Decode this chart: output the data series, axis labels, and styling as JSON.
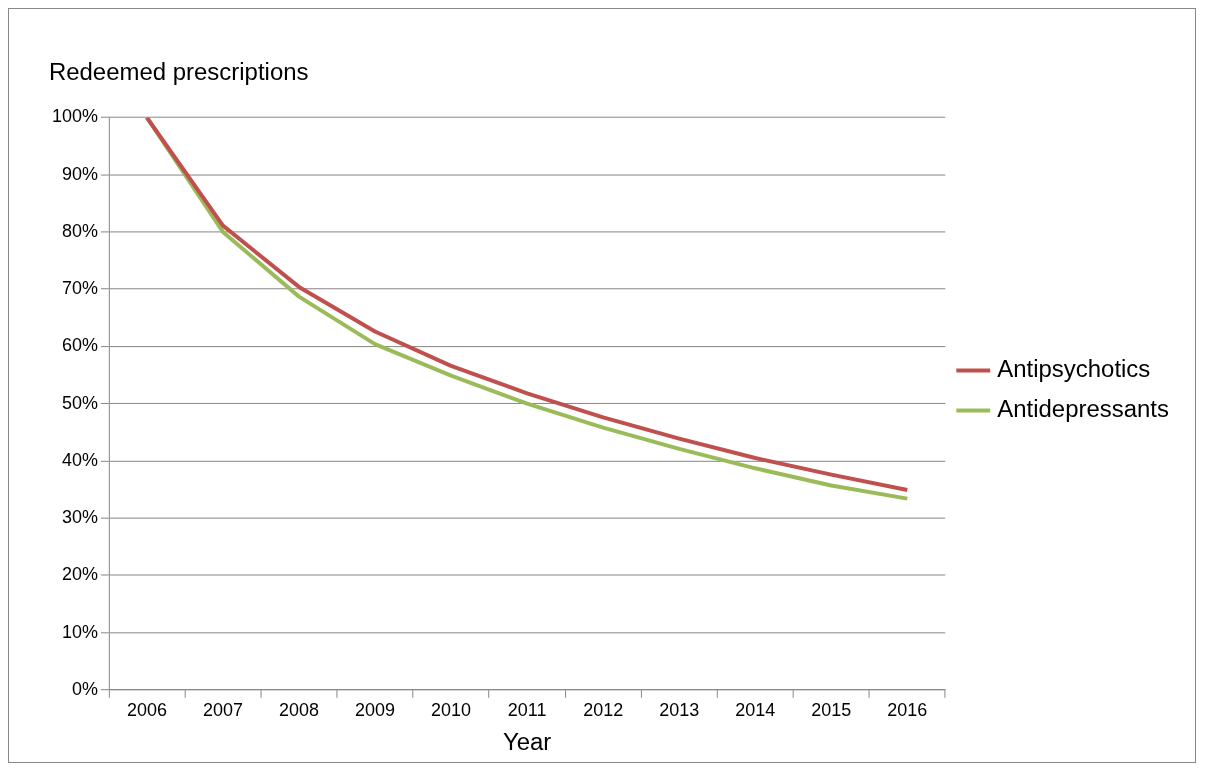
{
  "chart_data": {
    "type": "line",
    "title": "Redeemed prescriptions",
    "xlabel": "Year",
    "categories": [
      "2006",
      "2007",
      "2008",
      "2009",
      "2010",
      "2011",
      "2012",
      "2013",
      "2014",
      "2015",
      "2016"
    ],
    "series": [
      {
        "name": "Antipsychotics",
        "color": "#c0504d",
        "values": [
          100,
          81.1,
          70.4,
          62.6,
          56.6,
          51.8,
          47.6,
          43.9,
          40.5,
          37.6,
          34.9
        ]
      },
      {
        "name": "Antidepressants",
        "color": "#9bbb59",
        "values": [
          100,
          80.0,
          68.7,
          60.4,
          54.9,
          50.0,
          45.8,
          42.1,
          38.7,
          35.7,
          33.4
        ]
      }
    ],
    "ylim": [
      0,
      100
    ],
    "yticks": [
      {
        "value": 0,
        "label": "0%"
      },
      {
        "value": 10,
        "label": "10%"
      },
      {
        "value": 20,
        "label": "20%"
      },
      {
        "value": 30,
        "label": "30%"
      },
      {
        "value": 40,
        "label": "40%"
      },
      {
        "value": 50,
        "label": "50%"
      },
      {
        "value": 60,
        "label": "60%"
      },
      {
        "value": 70,
        "label": "70%"
      },
      {
        "value": 80,
        "label": "80%"
      },
      {
        "value": 90,
        "label": "90%"
      },
      {
        "value": 100,
        "label": "100%"
      }
    ],
    "grid": "y",
    "legend": "right",
    "marker": "none",
    "line_style": "solid"
  }
}
